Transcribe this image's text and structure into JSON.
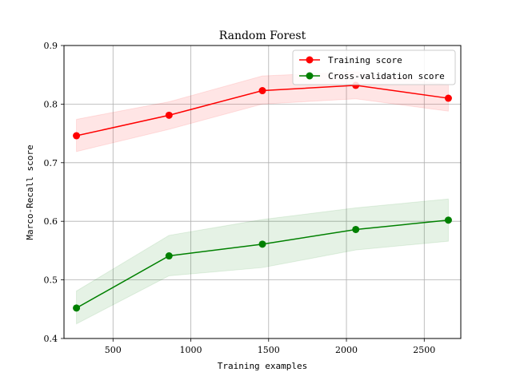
{
  "chart_data": {
    "type": "line",
    "title": "Random Forest",
    "xlabel": "Training examples",
    "ylabel": "Marco-Recall score",
    "xlim": [
      185,
      2735
    ],
    "ylim": [
      0.4,
      0.9
    ],
    "xticks": [
      500,
      1000,
      1500,
      2000,
      2500
    ],
    "yticks": [
      0.4,
      0.5,
      0.6,
      0.7,
      0.8,
      0.9
    ],
    "grid": true,
    "legend_position": "upper-right",
    "series": [
      {
        "name": "Training score",
        "color": "#ff0000",
        "band_color": "#ff0000",
        "x": [
          265,
          860,
          1460,
          2060,
          2655
        ],
        "y": [
          0.746,
          0.781,
          0.823,
          0.832,
          0.81
        ],
        "lower": [
          0.719,
          0.757,
          0.8,
          0.809,
          0.788
        ],
        "upper": [
          0.774,
          0.804,
          0.848,
          0.855,
          0.833
        ]
      },
      {
        "name": "Cross-validation score",
        "color": "#008000",
        "band_color": "#008000",
        "x": [
          265,
          860,
          1460,
          2060,
          2655
        ],
        "y": [
          0.452,
          0.541,
          0.561,
          0.586,
          0.602
        ],
        "lower": [
          0.425,
          0.507,
          0.521,
          0.551,
          0.566
        ],
        "upper": [
          0.481,
          0.576,
          0.603,
          0.623,
          0.638
        ]
      }
    ]
  }
}
